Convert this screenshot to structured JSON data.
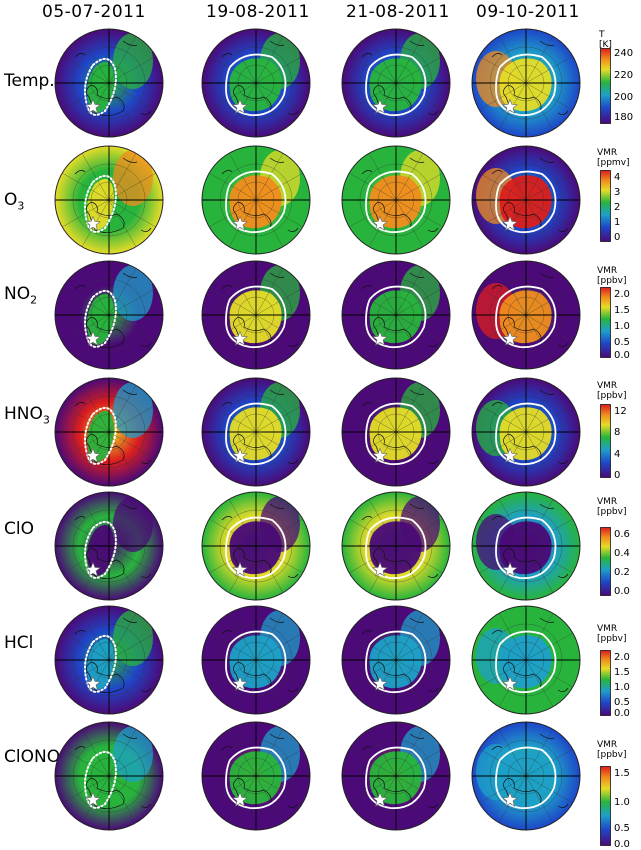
{
  "dates": [
    "05-07-2011",
    "19-08-2011",
    "21-08-2011",
    "09-10-2011"
  ],
  "rows": [
    {
      "label": "Temp.",
      "label_sub": "",
      "cb_title": "T",
      "cb_unit": "[K]",
      "ticks": [
        "240",
        "220",
        "200",
        "180"
      ]
    },
    {
      "label": "O",
      "label_sub": "3",
      "cb_title": "VMR",
      "cb_unit": "[ppmv]",
      "ticks": [
        "4",
        "3",
        "2",
        "1",
        "0"
      ]
    },
    {
      "label": "NO",
      "label_sub": "2",
      "cb_title": "VMR",
      "cb_unit": "[ppbv]",
      "ticks": [
        "2.0",
        "1.5",
        "1.0",
        "0.5",
        "0.0"
      ]
    },
    {
      "label": "HNO",
      "label_sub": "3",
      "cb_title": "VMR",
      "cb_unit": "[ppbv]",
      "ticks": [
        "12",
        "8",
        "4",
        "0"
      ]
    },
    {
      "label": "ClO",
      "label_sub": "",
      "cb_title": "VMR",
      "cb_unit": "[ppbv]",
      "ticks": [
        "0.6",
        "0.4",
        "0.2",
        "0.0"
      ]
    },
    {
      "label": "HCl",
      "label_sub": "",
      "cb_title": "VMR",
      "cb_unit": "[ppbv]",
      "ticks": [
        "2.0",
        "1.5",
        "1.0",
        "0.5",
        "0.0"
      ]
    },
    {
      "label": "ClONO",
      "label_sub": "2",
      "cb_title": "VMR",
      "cb_unit": "[ppbv]",
      "ticks": [
        "1.5",
        "1.0",
        "0.5",
        "0.0"
      ]
    }
  ],
  "colors": {
    "deep": "#4b0a78",
    "blue": "#1e46c8",
    "cyan": "#1ea0c8",
    "green": "#28b43c",
    "yellow": "#e6dc28",
    "orange": "#f08c1e",
    "red": "#dc1e1e",
    "vortex_line": "#ffffff"
  },
  "map_fields": [
    [
      [
        "deep",
        "blue",
        "green",
        "green",
        "green"
      ],
      [
        "yellow",
        "green",
        "green",
        "yellow",
        "orange"
      ],
      [
        "deep",
        "deep",
        "green",
        "green",
        "cyan"
      ],
      [
        "deep",
        "red",
        "yellow",
        "green",
        "cyan"
      ],
      [
        "deep",
        "green",
        "deep",
        "deep",
        "deep"
      ],
      [
        "deep",
        "blue",
        "green",
        "cyan",
        "green"
      ],
      [
        "deep",
        "green",
        "green",
        "green",
        "cyan"
      ]
    ],
    [
      [
        "deep",
        "blue",
        "cyan",
        "green",
        "green"
      ],
      [
        "green",
        "green",
        "yellow",
        "orange",
        "yellow"
      ],
      [
        "deep",
        "deep",
        "green",
        "yellow",
        "green"
      ],
      [
        "deep",
        "blue",
        "green",
        "yellow",
        "green"
      ],
      [
        "green",
        "yellow",
        "blue",
        "deep",
        "deep"
      ],
      [
        "deep",
        "deep",
        "green",
        "cyan",
        "cyan"
      ],
      [
        "deep",
        "deep",
        "orange",
        "green",
        "cyan"
      ]
    ],
    [
      [
        "deep",
        "blue",
        "cyan",
        "green",
        "green"
      ],
      [
        "green",
        "green",
        "yellow",
        "orange",
        "yellow"
      ],
      [
        "deep",
        "deep",
        "deep",
        "green",
        "green"
      ],
      [
        "deep",
        "deep",
        "green",
        "yellow",
        "green"
      ],
      [
        "green",
        "yellow",
        "blue",
        "deep",
        "deep"
      ],
      [
        "deep",
        "deep",
        "green",
        "cyan",
        "cyan"
      ],
      [
        "deep",
        "deep",
        "orange",
        "green",
        "cyan"
      ]
    ],
    [
      [
        "blue",
        "cyan",
        "green",
        "yellow",
        "orange"
      ],
      [
        "deep",
        "blue",
        "green",
        "red",
        "orange"
      ],
      [
        "deep",
        "deep",
        "green",
        "orange",
        "red"
      ],
      [
        "deep",
        "blue",
        "green",
        "yellow",
        "green"
      ],
      [
        "green",
        "cyan",
        "deep",
        "deep",
        "deep"
      ],
      [
        "green",
        "green",
        "cyan",
        "cyan",
        "cyan"
      ],
      [
        "blue",
        "cyan",
        "green",
        "cyan",
        "cyan"
      ]
    ]
  ]
}
